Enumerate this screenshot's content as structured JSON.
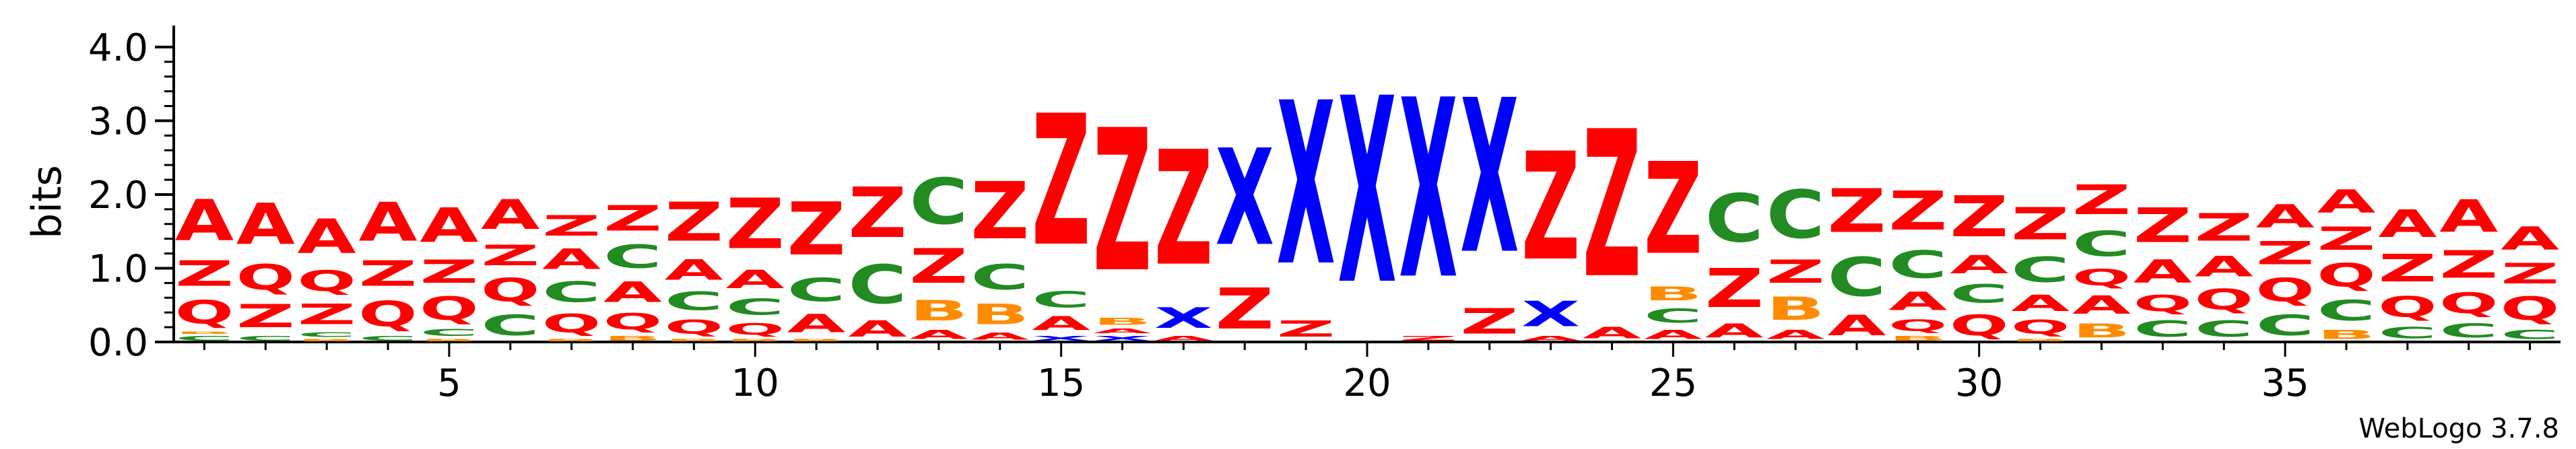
{
  "chart_data": {
    "type": "sequence-logo",
    "ylabel": "bits",
    "yticks": [
      "0.0",
      "1.0",
      "2.0",
      "3.0",
      "4.0"
    ],
    "ylim": [
      0,
      4.2
    ],
    "xticks": [
      "5",
      "10",
      "15",
      "20",
      "25",
      "30",
      "35"
    ],
    "xtick_positions": [
      5,
      10,
      15,
      20,
      25,
      30,
      35
    ],
    "positions_count": 39,
    "footer": "WebLogo 3.7.8",
    "colors": {
      "A": "#ff0000",
      "Z": "#ff0000",
      "Q": "#ff0000",
      "C": "#228b22",
      "B": "#ff8c00",
      "X": "#0000ff"
    },
    "columns": [
      {
        "p": 1,
        "stack": [
          [
            "C",
            0.1
          ],
          [
            "B",
            0.05
          ],
          [
            "Q",
            0.5
          ],
          [
            "Z",
            0.55
          ],
          [
            "A",
            0.9
          ]
        ]
      },
      {
        "p": 2,
        "stack": [
          [
            "C",
            0.1
          ],
          [
            "Z",
            0.5
          ],
          [
            "Q",
            0.55
          ],
          [
            "A",
            0.9
          ]
        ]
      },
      {
        "p": 3,
        "stack": [
          [
            "B",
            0.05
          ],
          [
            "C",
            0.1
          ],
          [
            "Z",
            0.45
          ],
          [
            "Q",
            0.45
          ],
          [
            "A",
            0.75
          ]
        ]
      },
      {
        "p": 4,
        "stack": [
          [
            "C",
            0.1
          ],
          [
            "Q",
            0.55
          ],
          [
            "Z",
            0.55
          ],
          [
            "A",
            0.85
          ]
        ]
      },
      {
        "p": 5,
        "stack": [
          [
            "B",
            0.05
          ],
          [
            "C",
            0.15
          ],
          [
            "Q",
            0.5
          ],
          [
            "Z",
            0.5
          ],
          [
            "A",
            0.75
          ]
        ]
      },
      {
        "p": 6,
        "stack": [
          [
            "C",
            0.45
          ],
          [
            "Q",
            0.5
          ],
          [
            "Z",
            0.45
          ],
          [
            "A",
            0.65
          ]
        ]
      },
      {
        "p": 7,
        "stack": [
          [
            "B",
            0.05
          ],
          [
            "Q",
            0.4
          ],
          [
            "C",
            0.45
          ],
          [
            "A",
            0.45
          ],
          [
            "Z",
            0.45
          ]
        ]
      },
      {
        "p": 8,
        "stack": [
          [
            "B",
            0.1
          ],
          [
            "Q",
            0.35
          ],
          [
            "A",
            0.45
          ],
          [
            "C",
            0.5
          ],
          [
            "Z",
            0.55
          ]
        ]
      },
      {
        "p": 9,
        "stack": [
          [
            "B",
            0.05
          ],
          [
            "Q",
            0.3
          ],
          [
            "C",
            0.4
          ],
          [
            "A",
            0.45
          ],
          [
            "Z",
            0.85
          ]
        ]
      },
      {
        "p": 10,
        "stack": [
          [
            "B",
            0.05
          ],
          [
            "Q",
            0.25
          ],
          [
            "C",
            0.35
          ],
          [
            "A",
            0.4
          ],
          [
            "Z",
            1.1
          ]
        ]
      },
      {
        "p": 11,
        "stack": [
          [
            "B",
            0.05
          ],
          [
            "A",
            0.4
          ],
          [
            "C",
            0.5
          ],
          [
            "Z",
            1.15
          ]
        ]
      },
      {
        "p": 12,
        "stack": [
          [
            "A",
            0.35
          ],
          [
            "C",
            0.85
          ],
          [
            "Z",
            1.1
          ]
        ]
      },
      {
        "p": 13,
        "stack": [
          [
            "A",
            0.2
          ],
          [
            "B",
            0.45
          ],
          [
            "Z",
            0.75
          ],
          [
            "C",
            1.0
          ]
        ]
      },
      {
        "p": 14,
        "stack": [
          [
            "A",
            0.15
          ],
          [
            "B",
            0.45
          ],
          [
            "C",
            0.55
          ],
          [
            "Z",
            1.25
          ]
        ]
      },
      {
        "p": 15,
        "stack": [
          [
            "X",
            0.1
          ],
          [
            "A",
            0.3
          ],
          [
            "C",
            0.35
          ],
          [
            "Z",
            2.85
          ]
        ]
      },
      {
        "p": 16,
        "stack": [
          [
            "X",
            0.1
          ],
          [
            "A",
            0.1
          ],
          [
            "B",
            0.15
          ],
          [
            "Z",
            3.1
          ]
        ]
      },
      {
        "p": 17,
        "stack": [
          [
            "A",
            0.1
          ],
          [
            "X",
            0.45
          ],
          [
            "Z",
            2.5
          ]
        ]
      },
      {
        "p": 18,
        "stack": [
          [
            "Z",
            0.9
          ],
          [
            "X",
            2.1
          ]
        ]
      },
      {
        "p": 19,
        "stack": [
          [
            "Z",
            0.35
          ],
          [
            "X",
            3.55
          ]
        ]
      },
      {
        "p": 20,
        "stack": [
          [
            "X",
            4.05
          ]
        ]
      },
      {
        "p": 21,
        "stack": [
          [
            "Z",
            0.1
          ],
          [
            "X",
            3.9
          ]
        ]
      },
      {
        "p": 22,
        "stack": [
          [
            "Z",
            0.55
          ],
          [
            "X",
            3.35
          ]
        ]
      },
      {
        "p": 23,
        "stack": [
          [
            "A",
            0.1
          ],
          [
            "X",
            0.55
          ],
          [
            "Z",
            2.35
          ]
        ]
      },
      {
        "p": 24,
        "stack": [
          [
            "A",
            0.25
          ],
          [
            "Z",
            3.2
          ]
        ]
      },
      {
        "p": 25,
        "stack": [
          [
            "A",
            0.2
          ],
          [
            "C",
            0.3
          ],
          [
            "B",
            0.3
          ],
          [
            "Z",
            2.0
          ]
        ]
      },
      {
        "p": 26,
        "stack": [
          [
            "A",
            0.3
          ],
          [
            "Z",
            0.85
          ],
          [
            "C",
            1.05
          ]
        ]
      },
      {
        "p": 27,
        "stack": [
          [
            "A",
            0.2
          ],
          [
            "B",
            0.5
          ],
          [
            "Z",
            0.5
          ],
          [
            "C",
            1.05
          ]
        ]
      },
      {
        "p": 28,
        "stack": [
          [
            "A",
            0.45
          ],
          [
            "C",
            0.85
          ],
          [
            "Z",
            0.95
          ]
        ]
      },
      {
        "p": 29,
        "stack": [
          [
            "B",
            0.1
          ],
          [
            "Q",
            0.25
          ],
          [
            "A",
            0.4
          ],
          [
            "C",
            0.6
          ],
          [
            "Z",
            0.85
          ]
        ]
      },
      {
        "p": 30,
        "stack": [
          [
            "Q",
            0.45
          ],
          [
            "C",
            0.4
          ],
          [
            "A",
            0.4
          ],
          [
            "Z",
            0.9
          ]
        ]
      },
      {
        "p": 31,
        "stack": [
          [
            "B",
            0.05
          ],
          [
            "Q",
            0.3
          ],
          [
            "A",
            0.35
          ],
          [
            "C",
            0.55
          ],
          [
            "Z",
            0.7
          ]
        ]
      },
      {
        "p": 32,
        "stack": [
          [
            "B",
            0.3
          ],
          [
            "A",
            0.4
          ],
          [
            "Q",
            0.35
          ],
          [
            "C",
            0.55
          ],
          [
            "Z",
            0.65
          ]
        ]
      },
      {
        "p": 33,
        "stack": [
          [
            "C",
            0.35
          ],
          [
            "Q",
            0.35
          ],
          [
            "A",
            0.5
          ],
          [
            "Z",
            0.75
          ]
        ]
      },
      {
        "p": 34,
        "stack": [
          [
            "C",
            0.35
          ],
          [
            "Q",
            0.45
          ],
          [
            "A",
            0.45
          ],
          [
            "Z",
            0.6
          ]
        ]
      },
      {
        "p": 35,
        "stack": [
          [
            "C",
            0.45
          ],
          [
            "Q",
            0.5
          ],
          [
            "Z",
            0.5
          ],
          [
            "A",
            0.5
          ]
        ]
      },
      {
        "p": 36,
        "stack": [
          [
            "B",
            0.2
          ],
          [
            "C",
            0.45
          ],
          [
            "Q",
            0.5
          ],
          [
            "Z",
            0.5
          ],
          [
            "A",
            0.5
          ]
        ]
      },
      {
        "p": 37,
        "stack": [
          [
            "C",
            0.25
          ],
          [
            "Q",
            0.45
          ],
          [
            "Z",
            0.6
          ],
          [
            "A",
            0.6
          ]
        ]
      },
      {
        "p": 38,
        "stack": [
          [
            "C",
            0.3
          ],
          [
            "Q",
            0.45
          ],
          [
            "Z",
            0.6
          ],
          [
            "A",
            0.7
          ]
        ]
      },
      {
        "p": 39,
        "stack": [
          [
            "C",
            0.2
          ],
          [
            "Q",
            0.5
          ],
          [
            "Z",
            0.45
          ],
          [
            "A",
            0.5
          ]
        ]
      }
    ]
  }
}
